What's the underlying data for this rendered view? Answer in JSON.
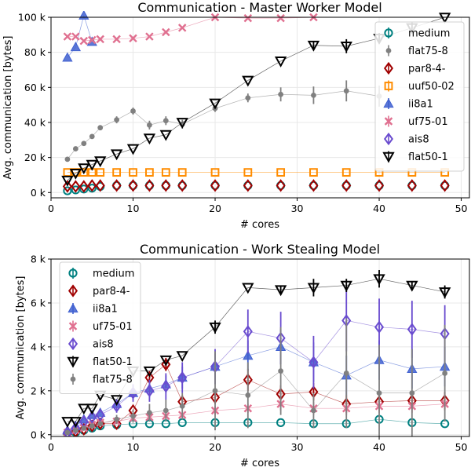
{
  "chart_data": [
    {
      "type": "scatter",
      "title": "Communication - Master Worker Model",
      "xlabel": "# cores",
      "ylabel": "Avg. communication [bytes]",
      "xlim": [
        0,
        51
      ],
      "ylim": [
        -3000,
        100000
      ],
      "xticks": [
        0,
        10,
        20,
        30,
        40,
        50
      ],
      "xtick_labels": [
        "0",
        "10",
        "20",
        "30",
        "40",
        "50"
      ],
      "yticks": [
        0,
        20000,
        40000,
        60000,
        80000,
        100000
      ],
      "ytick_labels": [
        "0 k",
        "20 k",
        "40 k",
        "60 k",
        "80 k",
        "100 k"
      ],
      "grid": true,
      "legend": {
        "position": "top-right",
        "background": "#ffffff"
      },
      "series": [
        {
          "name": "medium",
          "color": "#008080",
          "marker": "circle-open",
          "line": false,
          "x": [
            2,
            3,
            4,
            5,
            6,
            8,
            10,
            12,
            14,
            16,
            20,
            24,
            28,
            32,
            36,
            40,
            44,
            48
          ],
          "y": [
            1000,
            1500,
            2000,
            2500,
            3500,
            4000,
            4000,
            4000,
            4000,
            4000,
            4000,
            4000,
            4000,
            4000,
            4000,
            4000,
            4000,
            4000
          ],
          "err": [
            0,
            0,
            0,
            0,
            0,
            0,
            0,
            0,
            0,
            0,
            0,
            0,
            0,
            0,
            0,
            0,
            0,
            0
          ]
        },
        {
          "name": "flat75-8",
          "color": "#808080",
          "marker": "dot",
          "line": true,
          "x": [
            2,
            3,
            4,
            5,
            6,
            8,
            10,
            12,
            14,
            16,
            20,
            24,
            28,
            32,
            36,
            40
          ],
          "y": [
            19000,
            25000,
            28000,
            32000,
            37000,
            41500,
            46500,
            38500,
            41000,
            39000,
            48000,
            54000,
            56000,
            55500,
            58000,
            55000
          ],
          "err": [
            0,
            0,
            0,
            0,
            0,
            2000,
            2000,
            2500,
            2500,
            2500,
            2000,
            2500,
            4000,
            5000,
            6000,
            6000
          ]
        },
        {
          "name": "par8-4-",
          "color": "#a00000",
          "marker": "diamond-open",
          "line": false,
          "x": [
            2,
            3,
            4,
            5,
            6,
            8,
            10,
            12,
            14,
            16,
            20,
            24,
            28,
            32,
            36,
            40,
            44,
            48
          ],
          "y": [
            3500,
            3500,
            3500,
            4000,
            4000,
            4000,
            4000,
            4000,
            4000,
            4000,
            4000,
            4000,
            4000,
            4000,
            4000,
            4000,
            4000,
            4000
          ],
          "err": [
            0,
            0,
            0,
            0,
            0,
            0,
            0,
            0,
            0,
            0,
            0,
            0,
            0,
            0,
            0,
            0,
            0,
            0
          ]
        },
        {
          "name": "uuf50-02",
          "color": "#ff8c00",
          "marker": "square-open",
          "line": true,
          "x": [
            2,
            3,
            4,
            5,
            6,
            8,
            10,
            12,
            14,
            16,
            20,
            24,
            28,
            32,
            36,
            40,
            44,
            48
          ],
          "y": [
            11500,
            11500,
            11500,
            11500,
            11500,
            11500,
            11500,
            11500,
            11500,
            11500,
            11500,
            11500,
            11500,
            11500,
            11500,
            11500,
            11500,
            11500
          ],
          "err": [
            0,
            0,
            0,
            0,
            0,
            0,
            0,
            0,
            0,
            0,
            0,
            0,
            0,
            0,
            0,
            0,
            0,
            0
          ]
        },
        {
          "name": "ii8a1",
          "color": "#4060d0",
          "marker": "triangle-up",
          "line": true,
          "x": [
            2,
            3,
            4,
            5
          ],
          "y": [
            77000,
            83000,
            101000,
            86000
          ],
          "err": [
            0,
            0,
            0,
            0
          ]
        },
        {
          "name": "uf75-01",
          "color": "#e07090",
          "marker": "x",
          "line": true,
          "x": [
            2,
            3,
            4,
            5,
            6,
            8,
            10,
            12,
            14,
            16,
            20,
            24,
            28,
            32
          ],
          "y": [
            89000,
            89000,
            86500,
            87000,
            87500,
            87500,
            88000,
            89000,
            91500,
            94000,
            100000,
            99500,
            99500,
            100000
          ],
          "err": [
            0,
            0,
            0,
            0,
            0,
            0,
            0,
            0,
            0,
            0,
            0,
            0,
            0,
            0
          ]
        },
        {
          "name": "ais8",
          "color": "#6a4ccf",
          "marker": "diamond-open",
          "line": false,
          "x": [],
          "y": [],
          "err": []
        },
        {
          "name": "flat50-1",
          "color": "#000000",
          "marker": "triangle-down-open",
          "line": true,
          "x": [
            2,
            3,
            4,
            5,
            6,
            8,
            10,
            12,
            14,
            16,
            20,
            24,
            28,
            32,
            36,
            40,
            44,
            48
          ],
          "y": [
            7000,
            11000,
            14000,
            16000,
            18000,
            22000,
            25000,
            31000,
            33000,
            40000,
            51000,
            64000,
            75000,
            84000,
            83500,
            88000,
            94000,
            100000
          ],
          "err": [
            0,
            0,
            0,
            0,
            0,
            0,
            0,
            0,
            0,
            0,
            0,
            0,
            0,
            2000,
            4000,
            3000,
            3000,
            0
          ]
        }
      ]
    },
    {
      "type": "scatter",
      "title": "Communication - Work Stealing Model",
      "xlabel": "# cores",
      "ylabel": "Avg. communication [bytes]",
      "xlim": [
        0,
        51
      ],
      "ylim": [
        -80,
        8000
      ],
      "xticks": [
        0,
        10,
        20,
        30,
        40,
        50
      ],
      "xtick_labels": [
        "0",
        "10",
        "20",
        "30",
        "40",
        "50"
      ],
      "yticks": [
        0,
        2000,
        4000,
        6000,
        8000
      ],
      "ytick_labels": [
        "0 k",
        "2 k",
        "4 k",
        "6 k",
        "8 k"
      ],
      "grid": true,
      "legend": {
        "position": "top-left",
        "background": "#ffffff"
      },
      "series": [
        {
          "name": "medium",
          "color": "#008080",
          "marker": "circle-open",
          "line": true,
          "x": [
            2,
            3,
            4,
            5,
            6,
            8,
            10,
            12,
            14,
            16,
            20,
            24,
            28,
            32,
            36,
            40,
            44,
            48
          ],
          "y": [
            50,
            100,
            200,
            300,
            400,
            450,
            500,
            500,
            500,
            550,
            550,
            550,
            550,
            500,
            500,
            700,
            550,
            500
          ],
          "err": [
            0,
            0,
            0,
            0,
            0,
            0,
            0,
            0,
            0,
            0,
            0,
            0,
            0,
            0,
            0,
            0,
            0,
            0
          ]
        },
        {
          "name": "par8-4-",
          "color": "#a00000",
          "marker": "diamond-open",
          "line": true,
          "x": [
            2,
            3,
            4,
            5,
            6,
            8,
            10,
            12,
            14,
            16,
            20,
            24,
            28,
            32,
            36,
            40,
            44,
            48
          ],
          "y": [
            50,
            150,
            250,
            400,
            500,
            500,
            1100,
            2600,
            3200,
            1500,
            1700,
            2500,
            1850,
            1950,
            1400,
            1500,
            1550,
            1550
          ],
          "err": [
            0,
            0,
            0,
            0,
            0,
            0,
            0,
            300,
            300,
            300,
            300,
            500,
            400,
            400,
            400,
            400,
            400,
            400
          ]
        },
        {
          "name": "ii8a1",
          "color": "#4060d0",
          "marker": "triangle-up",
          "line": true,
          "x": [
            2,
            3,
            4,
            5,
            6,
            8,
            10,
            12,
            14,
            16,
            20,
            24,
            28,
            32,
            36,
            40,
            44,
            48
          ],
          "y": [
            200,
            400,
            700,
            900,
            1000,
            1400,
            1900,
            2100,
            2300,
            2600,
            3100,
            3600,
            4000,
            3300,
            2700,
            3400,
            3000,
            3100
          ],
          "err": [
            0,
            0,
            0,
            0,
            0,
            200,
            300,
            400,
            400,
            500,
            600,
            700,
            800,
            900,
            900,
            900,
            900,
            900
          ]
        },
        {
          "name": "uf75-01",
          "color": "#e07090",
          "marker": "x",
          "line": true,
          "x": [
            2,
            3,
            4,
            5,
            6,
            8,
            10,
            12,
            14,
            16,
            20,
            24,
            28,
            32,
            36,
            40,
            44,
            48
          ],
          "y": [
            100,
            200,
            300,
            450,
            550,
            600,
            750,
            800,
            850,
            900,
            1100,
            1200,
            1400,
            1200,
            1200,
            1300,
            1300,
            1400
          ],
          "err": [
            0,
            0,
            0,
            0,
            0,
            0,
            0,
            0,
            0,
            0,
            200,
            200,
            300,
            300,
            300,
            300,
            300,
            300
          ]
        },
        {
          "name": "ais8",
          "color": "#6a4ccf",
          "marker": "diamond-open",
          "line": true,
          "x": [
            2,
            3,
            4,
            5,
            6,
            8,
            10,
            12,
            14,
            16,
            20,
            24,
            28,
            32,
            36,
            40,
            44,
            48
          ],
          "y": [
            100,
            300,
            600,
            800,
            900,
            1300,
            1900,
            2000,
            2200,
            2600,
            3100,
            4700,
            4400,
            3300,
            5200,
            4900,
            4800,
            4600
          ],
          "err": [
            0,
            0,
            0,
            0,
            0,
            300,
            400,
            500,
            600,
            700,
            800,
            1000,
            1200,
            1200,
            1400,
            1300,
            1300,
            1300
          ]
        },
        {
          "name": "flat50-1",
          "color": "#000000",
          "marker": "triangle-down-open",
          "line": true,
          "x": [
            2,
            3,
            4,
            5,
            6,
            8,
            10,
            12,
            14,
            16,
            20,
            24,
            28,
            32,
            36,
            40,
            44,
            48
          ],
          "y": [
            600,
            600,
            1200,
            1200,
            1800,
            1600,
            2900,
            2900,
            3400,
            3600,
            4900,
            6700,
            6600,
            6700,
            6800,
            7100,
            6800,
            6500
          ],
          "err": [
            0,
            0,
            0,
            0,
            0,
            0,
            0,
            0,
            0,
            0,
            300,
            0,
            200,
            400,
            300,
            400,
            200,
            300
          ]
        },
        {
          "name": "flat75-8",
          "color": "#808080",
          "marker": "dot",
          "line": true,
          "x": [
            2,
            3,
            4,
            5,
            6,
            8,
            10,
            12,
            14,
            16,
            20,
            24,
            28,
            32,
            36,
            40,
            44,
            48
          ],
          "y": [
            100,
            200,
            300,
            400,
            500,
            700,
            850,
            1000,
            1100,
            1300,
            2000,
            1800,
            2900,
            1100,
            2800,
            1900,
            1900,
            2800
          ],
          "err": [
            0,
            0,
            0,
            0,
            0,
            200,
            300,
            400,
            500,
            600,
            1800,
            1500,
            2000,
            800,
            2500,
            2200,
            2000,
            2200
          ]
        }
      ]
    }
  ]
}
